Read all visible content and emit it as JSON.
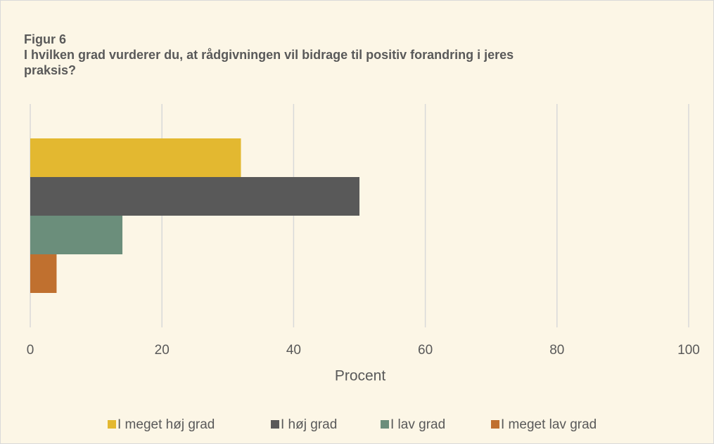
{
  "chart_data": {
    "type": "hbar",
    "title": "Figur 6",
    "subtitle": "I hvilken grad vurderer du, at rådgivningen vil bidrage til positiv forandring i jeres praksis?",
    "categories": [
      null
    ],
    "series": [
      {
        "name": "I meget høj grad",
        "color": "#e3b830",
        "values": [
          32
        ]
      },
      {
        "name": "I høj grad",
        "color": "#595959",
        "values": [
          50
        ]
      },
      {
        "name": "I lav grad",
        "color": "#6b8e7b",
        "values": [
          14
        ]
      },
      {
        "name": "I meget lav grad",
        "color": "#c0702f",
        "values": [
          4
        ]
      }
    ],
    "xlabel": "Procent",
    "xlim": [
      0,
      100
    ],
    "xticks": [
      0,
      20,
      40,
      60,
      80,
      100
    ],
    "grid": true,
    "legend": "bottom"
  }
}
